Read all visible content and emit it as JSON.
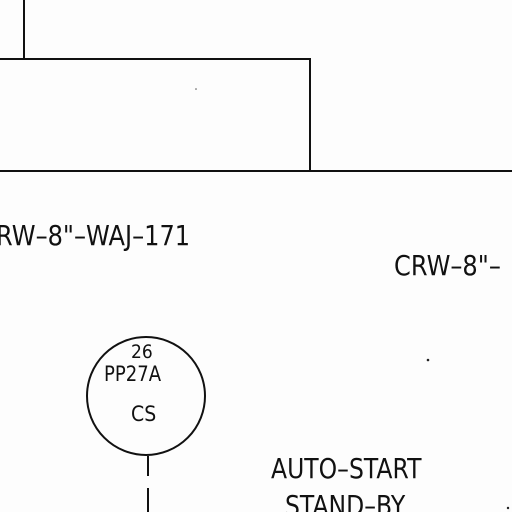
{
  "drawing": {
    "line_color": "#111111",
    "background": "#fdfdfd"
  },
  "pipe_labels": {
    "line_1": "RW–8\"–WAJ–171",
    "line_2": "CRW–8\"–"
  },
  "instrument": {
    "tag_number": "26",
    "tag_id": "PP27A",
    "function": "CS",
    "icon": "instrument-bubble-icon"
  },
  "note": {
    "line_1": "AUTO–START",
    "line_2": "STAND–BY"
  }
}
